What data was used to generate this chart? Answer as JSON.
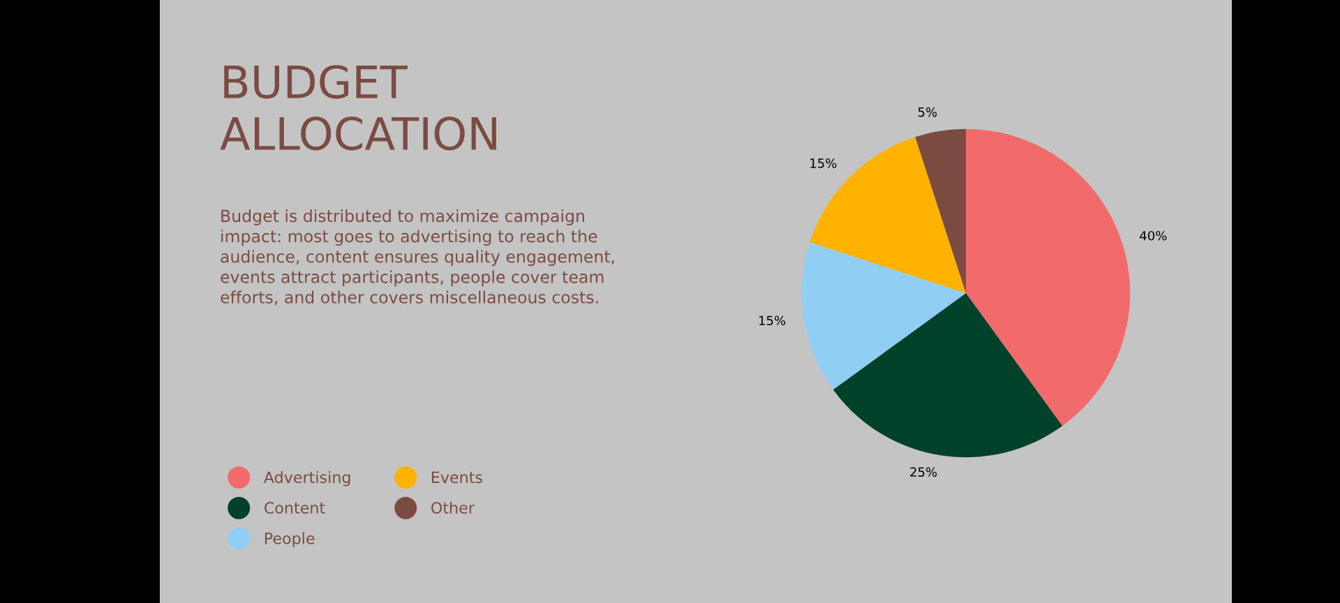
{
  "chart_data": {
    "type": "pie",
    "title": "BUDGET\nALLOCATION",
    "subtitle": "Budget is distributed to maximize campaign\nimpact: most goes to advertising to reach the\naudience, content ensures quality engagement,\nevents attract participants, people cover team\nefforts, and other covers miscellaneous costs.",
    "categories": [
      "Advertising",
      "Content",
      "People",
      "Events",
      "Other"
    ],
    "values": [
      40,
      25,
      15,
      15,
      5
    ],
    "colors": [
      "#f26b6b",
      "#00412a",
      "#90cff3",
      "#ffb300",
      "#7b4b42"
    ],
    "value_labels": [
      "40%",
      "25%",
      "15%",
      "15%",
      "5%"
    ],
    "legend": "left"
  }
}
